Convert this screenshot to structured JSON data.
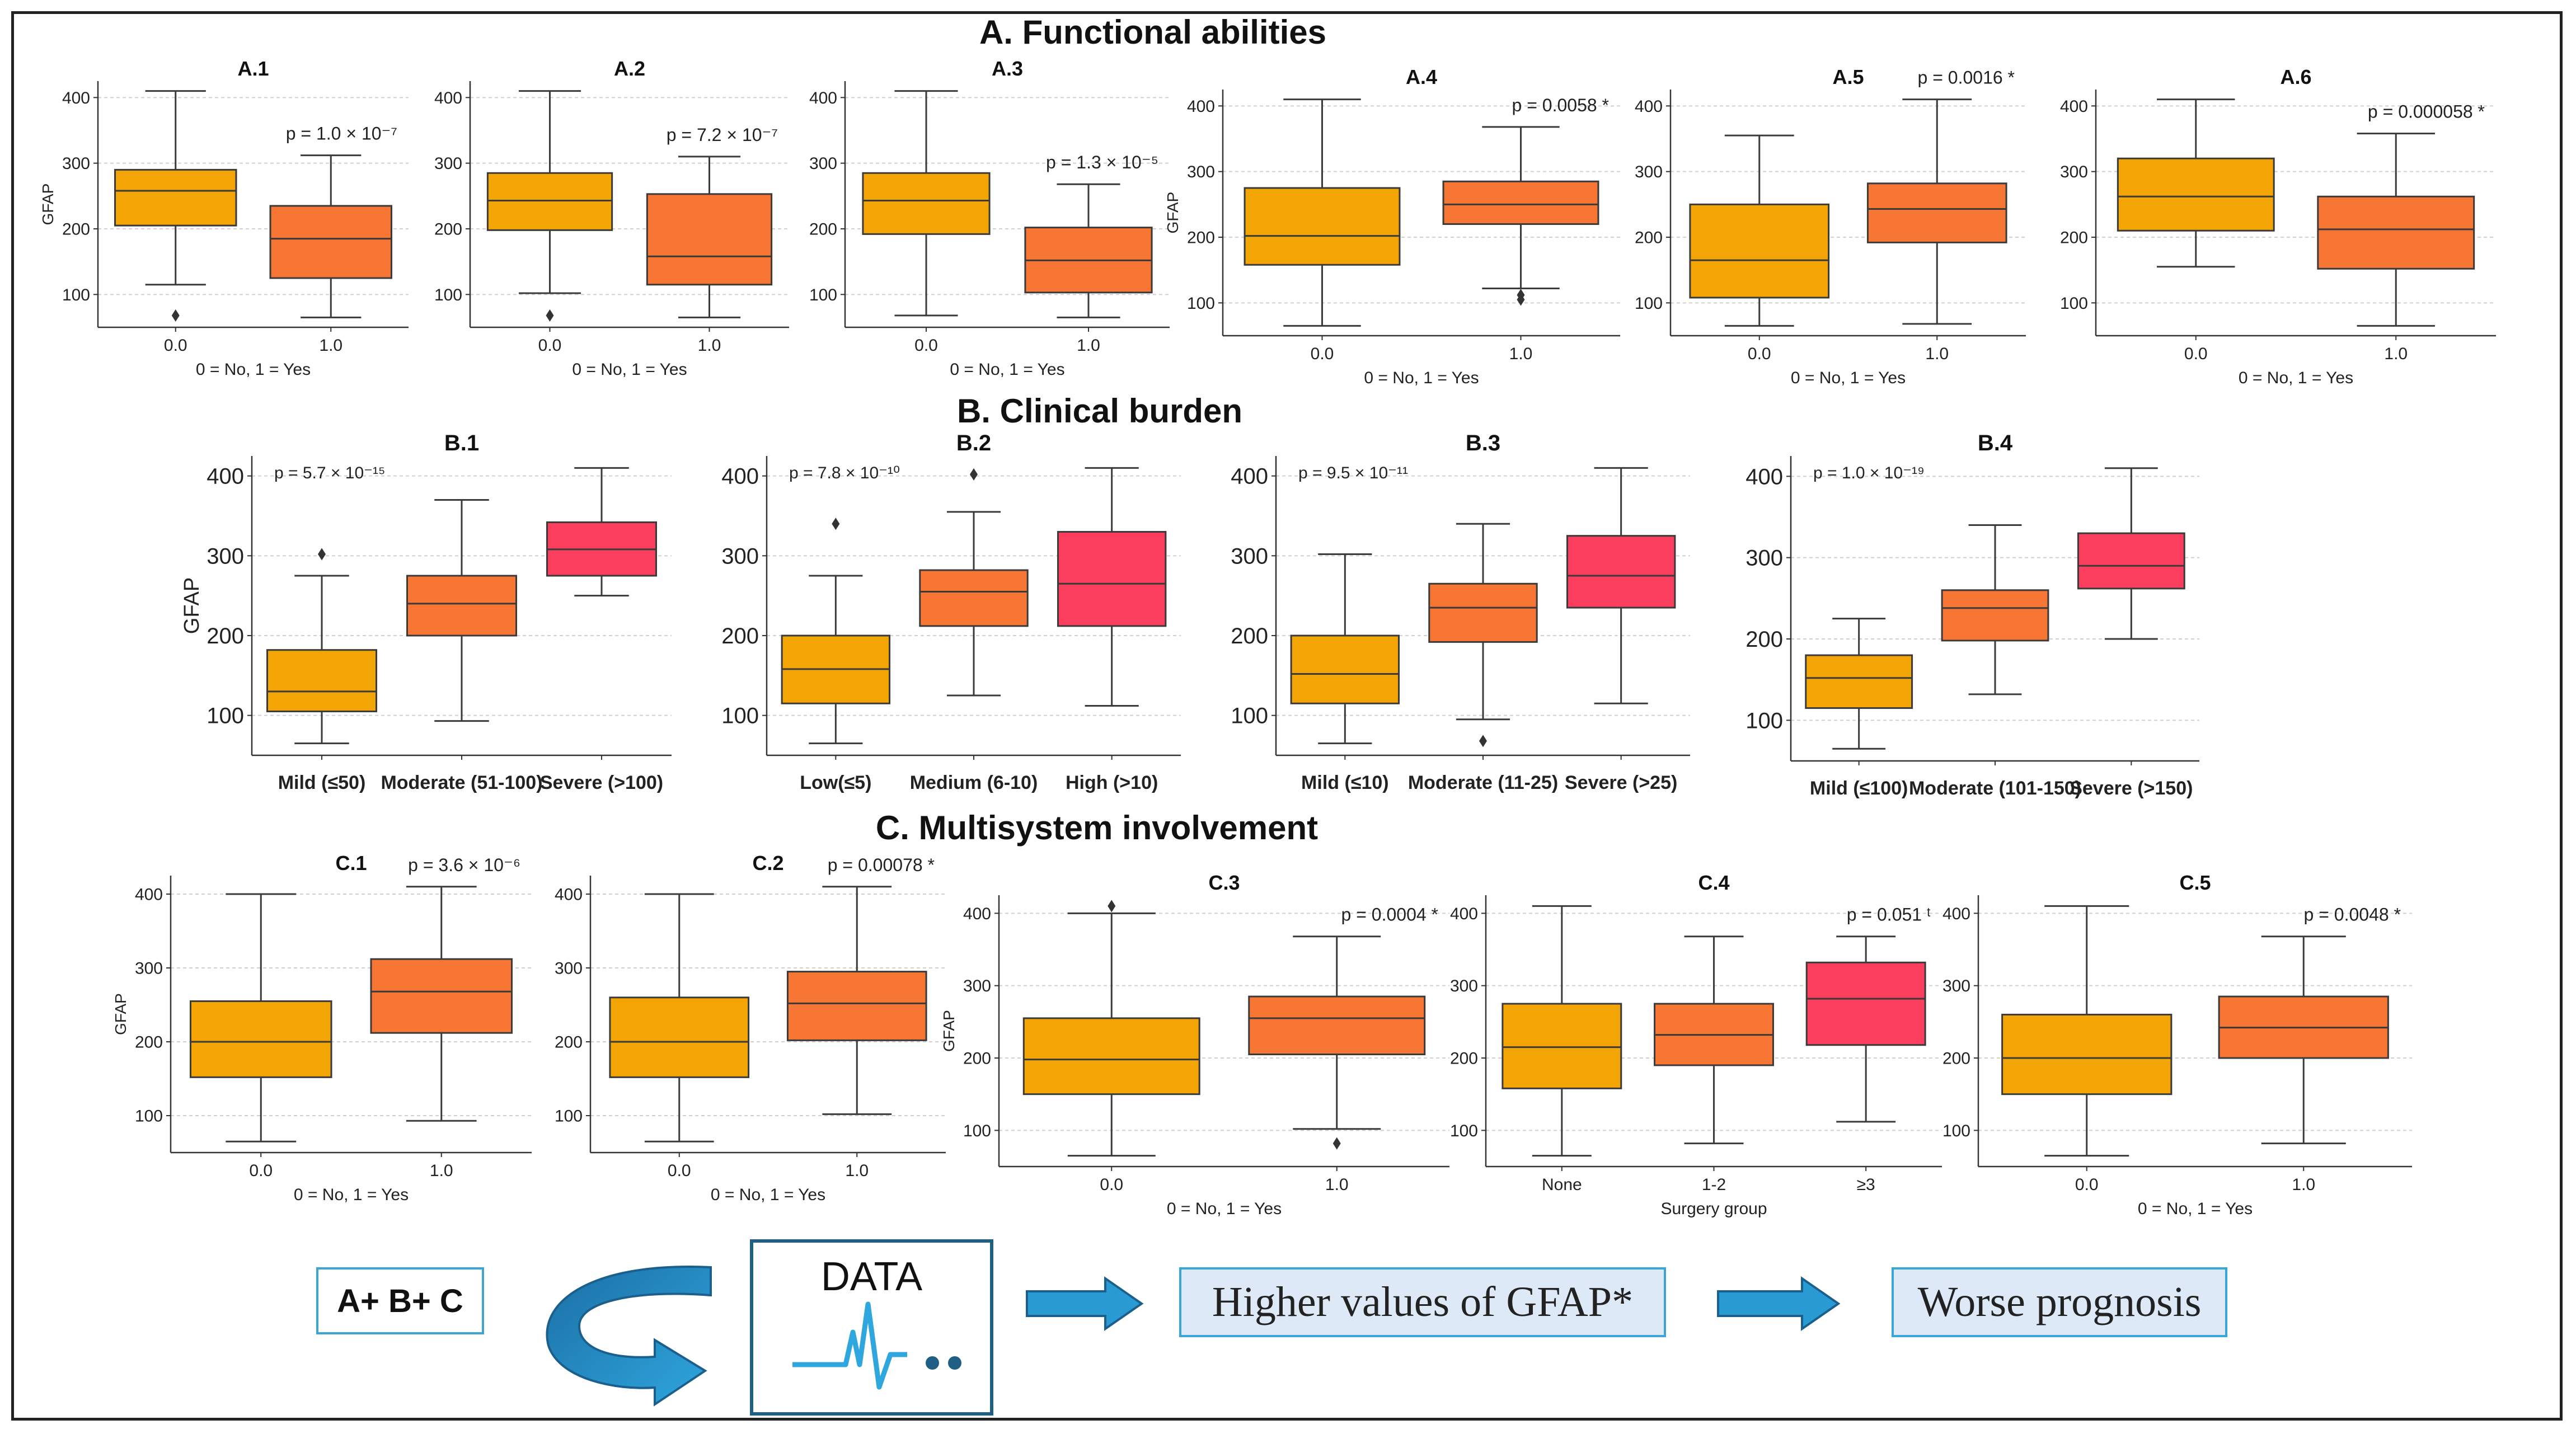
{
  "sections": {
    "a_title": "A. Functional abilities",
    "b_title": "B. Clinical burden",
    "c_title": "C. Multisystem involvement"
  },
  "colors": {
    "orange1": "#F3A505",
    "orange2": "#F87634",
    "red": "#FB3E5D",
    "line": "#3a3a3a",
    "grid": "#d0d0d0"
  },
  "chart_data": [
    {
      "id": "A.1",
      "type": "box",
      "title": "A.1",
      "ylabel": "GFAP",
      "xlabel": "0 = No, 1 = Yes",
      "categories": [
        "0.0",
        "1.0"
      ],
      "ylim": [
        50,
        425
      ],
      "yticks": [
        100,
        200,
        300,
        400
      ],
      "p_label": "p = 1.0 × 10⁻⁷",
      "boxes": [
        {
          "min": 115,
          "q1": 205,
          "median": 258,
          "q3": 290,
          "max": 410,
          "outliers": [
            68
          ]
        },
        {
          "min": 65,
          "q1": 125,
          "median": 185,
          "q3": 235,
          "max": 312,
          "outliers": []
        }
      ]
    },
    {
      "id": "A.2",
      "type": "box",
      "title": "A.2",
      "ylabel": "",
      "xlabel": "0 = No, 1 = Yes",
      "categories": [
        "0.0",
        "1.0"
      ],
      "ylim": [
        50,
        425
      ],
      "yticks": [
        100,
        200,
        300,
        400
      ],
      "p_label": "p = 7.2 × 10⁻⁷",
      "boxes": [
        {
          "min": 102,
          "q1": 198,
          "median": 243,
          "q3": 285,
          "max": 410,
          "outliers": [
            68
          ]
        },
        {
          "min": 65,
          "q1": 115,
          "median": 158,
          "q3": 253,
          "max": 310,
          "outliers": []
        }
      ]
    },
    {
      "id": "A.3",
      "type": "box",
      "title": "A.3",
      "ylabel": "",
      "xlabel": "0 = No, 1 = Yes",
      "categories": [
        "0.0",
        "1.0"
      ],
      "ylim": [
        50,
        425
      ],
      "yticks": [
        100,
        200,
        300,
        400
      ],
      "p_label": "p = 1.3 × 10⁻⁵",
      "boxes": [
        {
          "min": 68,
          "q1": 192,
          "median": 243,
          "q3": 285,
          "max": 410,
          "outliers": []
        },
        {
          "min": 65,
          "q1": 103,
          "median": 152,
          "q3": 202,
          "max": 268,
          "outliers": []
        }
      ]
    },
    {
      "id": "A.4",
      "type": "box",
      "title": "A.4",
      "ylabel": "GFAP",
      "xlabel": "0 = No, 1 = Yes",
      "categories": [
        "0.0",
        "1.0"
      ],
      "ylim": [
        50,
        425
      ],
      "yticks": [
        100,
        200,
        300,
        400
      ],
      "p_label": "p = 0.0058 *",
      "boxes": [
        {
          "min": 65,
          "q1": 158,
          "median": 202,
          "q3": 275,
          "max": 410,
          "outliers": []
        },
        {
          "min": 122,
          "q1": 220,
          "median": 250,
          "q3": 285,
          "max": 368,
          "outliers": [
            105,
            112
          ]
        }
      ]
    },
    {
      "id": "A.5",
      "type": "box",
      "title": "A.5",
      "ylabel": "",
      "xlabel": "0 = No, 1 = Yes",
      "categories": [
        "0.0",
        "1.0"
      ],
      "ylim": [
        50,
        425
      ],
      "yticks": [
        100,
        200,
        300,
        400
      ],
      "p_label": "p = 0.0016 *",
      "boxes": [
        {
          "min": 65,
          "q1": 108,
          "median": 165,
          "q3": 250,
          "max": 355,
          "outliers": []
        },
        {
          "min": 68,
          "q1": 192,
          "median": 243,
          "q3": 282,
          "max": 410,
          "outliers": []
        }
      ]
    },
    {
      "id": "A.6",
      "type": "box",
      "title": "A.6",
      "ylabel": "",
      "xlabel": "0 = No, 1 = Yes",
      "categories": [
        "0.0",
        "1.0"
      ],
      "ylim": [
        50,
        425
      ],
      "yticks": [
        100,
        200,
        300,
        400
      ],
      "p_label": "p = 0.000058 *",
      "boxes": [
        {
          "min": 155,
          "q1": 210,
          "median": 262,
          "q3": 320,
          "max": 410,
          "outliers": []
        },
        {
          "min": 65,
          "q1": 152,
          "median": 212,
          "q3": 262,
          "max": 358,
          "outliers": []
        }
      ]
    },
    {
      "id": "B.1",
      "type": "box",
      "title": "B.1",
      "ylabel": "GFAP",
      "xlabel": "",
      "categories": [
        "Mild (≤50)",
        "Moderate (51-100)",
        "Severe (>100)"
      ],
      "ylim": [
        50,
        425
      ],
      "yticks": [
        100,
        200,
        300,
        400
      ],
      "p_label": "p = 5.7 × 10⁻¹⁵",
      "boxes": [
        {
          "min": 65,
          "q1": 105,
          "median": 130,
          "q3": 182,
          "max": 275,
          "outliers": [
            302
          ]
        },
        {
          "min": 93,
          "q1": 200,
          "median": 240,
          "q3": 275,
          "max": 370,
          "outliers": []
        },
        {
          "min": 250,
          "q1": 275,
          "median": 308,
          "q3": 342,
          "max": 410,
          "outliers": []
        }
      ]
    },
    {
      "id": "B.2",
      "type": "box",
      "title": "B.2",
      "ylabel": "",
      "xlabel": "",
      "categories": [
        "Low(≤5)",
        "Medium (6-10)",
        "High (>10)"
      ],
      "ylim": [
        50,
        425
      ],
      "yticks": [
        100,
        200,
        300,
        400
      ],
      "p_label": "p = 7.8 × 10⁻¹⁰",
      "boxes": [
        {
          "min": 65,
          "q1": 115,
          "median": 158,
          "q3": 200,
          "max": 275,
          "outliers": [
            340
          ]
        },
        {
          "min": 125,
          "q1": 212,
          "median": 255,
          "q3": 282,
          "max": 355,
          "outliers": [
            402
          ]
        },
        {
          "min": 112,
          "q1": 212,
          "median": 265,
          "q3": 330,
          "max": 410,
          "outliers": []
        }
      ]
    },
    {
      "id": "B.3",
      "type": "box",
      "title": "B.3",
      "ylabel": "",
      "xlabel": "",
      "categories": [
        "Mild (≤10)",
        "Moderate (11-25)",
        "Severe (>25)"
      ],
      "ylim": [
        50,
        425
      ],
      "yticks": [
        100,
        200,
        300,
        400
      ],
      "p_label": "p = 9.5 × 10⁻¹¹",
      "boxes": [
        {
          "min": 65,
          "q1": 115,
          "median": 152,
          "q3": 200,
          "max": 302,
          "outliers": []
        },
        {
          "min": 95,
          "q1": 192,
          "median": 235,
          "q3": 265,
          "max": 340,
          "outliers": [
            68
          ]
        },
        {
          "min": 115,
          "q1": 235,
          "median": 275,
          "q3": 325,
          "max": 410,
          "outliers": []
        }
      ]
    },
    {
      "id": "B.4",
      "type": "box",
      "title": "B.4",
      "ylabel": "",
      "xlabel": "",
      "categories": [
        "Mild (≤100)",
        "Moderate (101-150)",
        "Severe (>150)"
      ],
      "ylim": [
        50,
        425
      ],
      "yticks": [
        100,
        200,
        300,
        400
      ],
      "p_label": "p = 1.0 × 10⁻¹⁹",
      "boxes": [
        {
          "min": 65,
          "q1": 115,
          "median": 152,
          "q3": 180,
          "max": 225,
          "outliers": []
        },
        {
          "min": 132,
          "q1": 198,
          "median": 238,
          "q3": 260,
          "max": 340,
          "outliers": []
        },
        {
          "min": 200,
          "q1": 262,
          "median": 290,
          "q3": 330,
          "max": 410,
          "outliers": []
        }
      ]
    },
    {
      "id": "C.1",
      "type": "box",
      "title": "C.1",
      "ylabel": "GFAP",
      "xlabel": "0 = No, 1 = Yes",
      "categories": [
        "0.0",
        "1.0"
      ],
      "ylim": [
        50,
        425
      ],
      "yticks": [
        100,
        200,
        300,
        400
      ],
      "p_label": "p = 3.6 × 10⁻⁶",
      "boxes": [
        {
          "min": 65,
          "q1": 152,
          "median": 200,
          "q3": 255,
          "max": 400,
          "outliers": []
        },
        {
          "min": 93,
          "q1": 212,
          "median": 268,
          "q3": 312,
          "max": 410,
          "outliers": []
        }
      ]
    },
    {
      "id": "C.2",
      "type": "box",
      "title": "C.2",
      "ylabel": "",
      "xlabel": "0 = No, 1 = Yes",
      "categories": [
        "0.0",
        "1.0"
      ],
      "ylim": [
        50,
        425
      ],
      "yticks": [
        100,
        200,
        300,
        400
      ],
      "p_label": "p = 0.00078 *",
      "boxes": [
        {
          "min": 65,
          "q1": 152,
          "median": 200,
          "q3": 260,
          "max": 400,
          "outliers": []
        },
        {
          "min": 102,
          "q1": 202,
          "median": 252,
          "q3": 295,
          "max": 410,
          "outliers": []
        }
      ]
    },
    {
      "id": "C.3",
      "type": "box",
      "title": "C.3",
      "ylabel": "GFAP",
      "xlabel": "0 = No, 1 = Yes",
      "categories": [
        "0.0",
        "1.0"
      ],
      "ylim": [
        50,
        425
      ],
      "yticks": [
        100,
        200,
        300,
        400
      ],
      "p_label": "p = 0.0004 *",
      "boxes": [
        {
          "min": 65,
          "q1": 150,
          "median": 198,
          "q3": 255,
          "max": 400,
          "outliers": [
            410
          ]
        },
        {
          "min": 102,
          "q1": 205,
          "median": 255,
          "q3": 285,
          "max": 368,
          "outliers": [
            82
          ]
        }
      ]
    },
    {
      "id": "C.4",
      "type": "box",
      "title": "C.4",
      "ylabel": "",
      "xlabel": "Surgery group",
      "categories": [
        "None",
        "1-2",
        "≥3"
      ],
      "ylim": [
        50,
        425
      ],
      "yticks": [
        100,
        200,
        300,
        400
      ],
      "p_label": "p = 0.051 ᵗ",
      "boxes": [
        {
          "min": 65,
          "q1": 158,
          "median": 215,
          "q3": 275,
          "max": 410,
          "outliers": []
        },
        {
          "min": 82,
          "q1": 190,
          "median": 232,
          "q3": 275,
          "max": 368,
          "outliers": []
        },
        {
          "min": 112,
          "q1": 218,
          "median": 282,
          "q3": 332,
          "max": 368,
          "outliers": []
        }
      ]
    },
    {
      "id": "C.5",
      "type": "box",
      "title": "C.5",
      "ylabel": "",
      "xlabel": "0 = No, 1 = Yes",
      "categories": [
        "0.0",
        "1.0"
      ],
      "ylim": [
        50,
        425
      ],
      "yticks": [
        100,
        200,
        300,
        400
      ],
      "p_label": "p = 0.0048 *",
      "boxes": [
        {
          "min": 65,
          "q1": 150,
          "median": 200,
          "q3": 260,
          "max": 410,
          "outliers": []
        },
        {
          "min": 82,
          "q1": 200,
          "median": 242,
          "q3": 285,
          "max": 368,
          "outliers": []
        }
      ]
    }
  ],
  "flow": {
    "abc": "A+ B+ C",
    "data": "DATA",
    "higher": "Higher values of GFAP*",
    "worse": "Worse prognosis"
  }
}
